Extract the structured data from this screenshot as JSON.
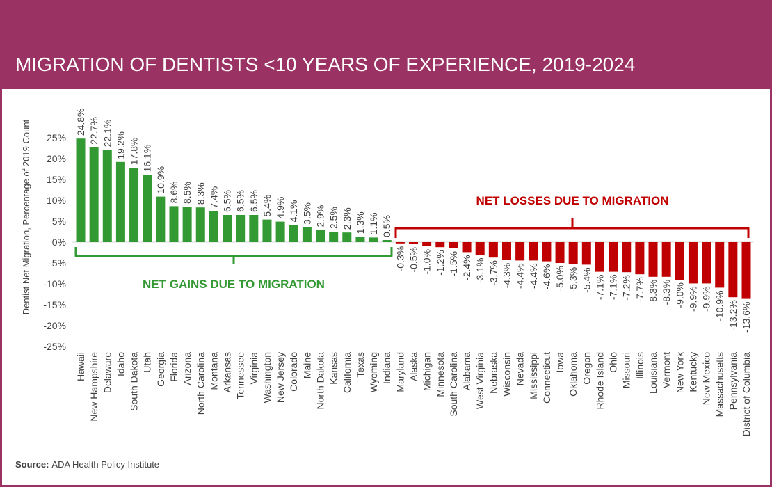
{
  "title": "MIGRATION OF DENTISTS <10 YEARS OF EXPERIENCE, 2019-2024",
  "source_label": "Source:",
  "source_text": "ADA Health Policy Institute",
  "colors": {
    "header": "#9a3364",
    "gain": "#339933",
    "loss": "#c00000",
    "axis_text": "#404040"
  },
  "annotations": {
    "gains": "NET GAINS DUE TO MIGRATION",
    "losses": "NET LOSSES DUE TO MIGRATION"
  },
  "chart_data": {
    "type": "bar",
    "title": "MIGRATION OF DENTISTS <10 YEARS OF EXPERIENCE, 2019-2024",
    "xlabel": "",
    "ylabel": "Dentist  Net Migration, Percentage of 2019 Count",
    "ylim": [
      -25,
      25
    ],
    "yticks": [
      25,
      20,
      15,
      10,
      5,
      0,
      -5,
      -10,
      -15,
      -20,
      -25
    ],
    "ytick_labels": [
      "25%",
      "20%",
      "15%",
      "10%",
      "5%",
      "0%",
      "-5%",
      "-10%",
      "-15%",
      "-20%",
      "-25%"
    ],
    "grid": false,
    "categories": [
      "Hawaii",
      "New Hampshire",
      "Delaware",
      "Idaho",
      "South Dakota",
      "Utah",
      "Georgia",
      "Florida",
      "Arizona",
      "North Carolina",
      "Montana",
      "Arkansas",
      "Tennessee",
      "Virginia",
      "Washington",
      "New Jersey",
      "Colorado",
      "Maine",
      "North Dakota",
      "Kansas",
      "California",
      "Texas",
      "Wyoming",
      "Indiana",
      "Maryland",
      "Alaska",
      "Michigan",
      "Minnesota",
      "South Carolina",
      "Alabama",
      "West Virginia",
      "Nebraska",
      "Wisconsin",
      "Nevada",
      "Mississippi",
      "Connecticut",
      "Iowa",
      "Oklahoma",
      "Oregon",
      "Rhode Island",
      "Ohio",
      "Missouri",
      "Illinois",
      "Louisiana",
      "Vermont",
      "New York",
      "Kentucky",
      "New Mexico",
      "Massachusetts",
      "Pennsylvania",
      "District of Columbia"
    ],
    "values": [
      24.8,
      22.7,
      22.1,
      19.2,
      17.8,
      16.1,
      10.9,
      8.6,
      8.5,
      8.3,
      7.4,
      6.5,
      6.5,
      6.5,
      5.4,
      4.9,
      4.1,
      3.5,
      2.9,
      2.5,
      2.3,
      1.3,
      1.1,
      0.5,
      -0.3,
      -0.5,
      -1.0,
      -1.2,
      -1.5,
      -2.4,
      -3.1,
      -3.7,
      -4.3,
      -4.4,
      -4.4,
      -4.6,
      -5.0,
      -5.3,
      -5.4,
      -7.1,
      -7.1,
      -7.2,
      -7.7,
      -8.3,
      -8.3,
      -9.0,
      -9.9,
      -9.9,
      -10.9,
      -13.2,
      -13.6
    ],
    "data_labels": [
      "24.8%",
      "22.7%",
      "22.1%",
      "19.2%",
      "17.8%",
      "16.1%",
      "10.9%",
      "8.6%",
      "8.5%",
      "8.3%",
      "7.4%",
      "6.5%",
      "6.5%",
      "6.5%",
      "5.4%",
      "4.9%",
      "4.1%",
      "3.5%",
      "2.9%",
      "2.5%",
      "2.3%",
      "1.3%",
      "1.1%",
      "0.5%",
      "-0.3%",
      "-0.5%",
      "-1.0%",
      "-1.2%",
      "-1.5%",
      "-2.4%",
      "-3.1%",
      "-3.7%",
      "-4.3%",
      "-4.4%",
      "-4.4%",
      "-4.6%",
      "-5.0%",
      "-5.3%",
      "-5.4%",
      "-7.1%",
      "-7.1%",
      "-7.2%",
      "-7.7%",
      "-8.3%",
      "-8.3%",
      "-9.0%",
      "-9.9%",
      "-9.9%",
      "-10.9%",
      "-13.2%",
      "-13.6%"
    ]
  }
}
